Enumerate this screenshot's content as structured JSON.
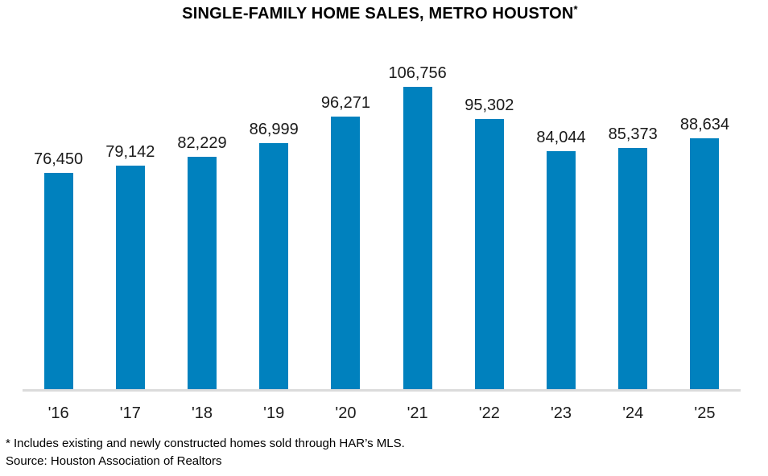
{
  "title": {
    "text": "SINGLE-FAMILY HOME SALES, METRO HOUSTON",
    "superscript": "*"
  },
  "footnote": {
    "line1": "* Includes existing and newly constructed homes sold through HAR’s MLS.",
    "line2": "Source: Houston Association of Realtors"
  },
  "colors": {
    "bar": "#0081BE",
    "axis_line": "#DBDBDB",
    "label_text": "#1A1A1A",
    "title_text": "#000000"
  },
  "chart_data": {
    "type": "bar",
    "title": "SINGLE-FAMILY HOME SALES, METRO HOUSTON*",
    "categories": [
      "'16",
      "'17",
      "'18",
      "'19",
      "'20",
      "'21",
      "'22",
      "'23",
      "'24",
      "'25"
    ],
    "values": [
      76450,
      79142,
      82229,
      86999,
      96271,
      106756,
      95302,
      84044,
      85373,
      88634
    ],
    "value_labels": [
      "76,450",
      "79,142",
      "82,229",
      "86,999",
      "96,271",
      "106,756",
      "95,302",
      "84,044",
      "85,373",
      "88,634"
    ],
    "xlabel": "",
    "ylabel": "",
    "ylim": [
      0,
      110000
    ],
    "grid": false,
    "legend": false,
    "data_labels": true
  }
}
